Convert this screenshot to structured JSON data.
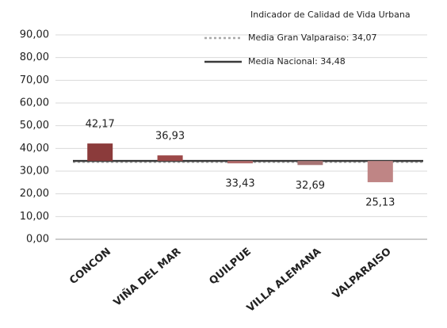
{
  "chart_data": {
    "type": "bar",
    "legend_title": "Indicador de Calidad de Vida Urbana",
    "categories": [
      "CONCON",
      "VIÑA DEL MAR",
      "QUILPUE",
      "VILLA ALEMANA",
      "VALPARAISO"
    ],
    "values": [
      42.17,
      36.93,
      33.43,
      32.69,
      25.13
    ],
    "value_labels": [
      "42,17",
      "36,93",
      "33,43",
      "32,69",
      "25,13"
    ],
    "colors": [
      "#8b3b3b",
      "#9c4848",
      "#b06a6a",
      "#a87474",
      "#bf8585"
    ],
    "reference_lines": [
      {
        "name": "Media Gran Valparaiso: 34,07",
        "value": 34.07,
        "style": "dotted",
        "color": "#a8a8a8"
      },
      {
        "name": "Media Nacional: 34,48",
        "value": 34.48,
        "style": "solid",
        "color": "#3a3a3a"
      }
    ],
    "bar_origin": "Media Nacional: 34,48",
    "ylim": [
      0,
      90
    ],
    "yticks": [
      {
        "value": 0,
        "label": "0,00"
      },
      {
        "value": 10,
        "label": "10,00"
      },
      {
        "value": 20,
        "label": "20,00"
      },
      {
        "value": 30,
        "label": "30,00"
      },
      {
        "value": 40,
        "label": "40,00"
      },
      {
        "value": 50,
        "label": "50,00"
      },
      {
        "value": 60,
        "label": "60,00"
      },
      {
        "value": 70,
        "label": "70,00"
      },
      {
        "value": 80,
        "label": "80,00"
      },
      {
        "value": 90,
        "label": "90,00"
      }
    ],
    "grid": true
  }
}
